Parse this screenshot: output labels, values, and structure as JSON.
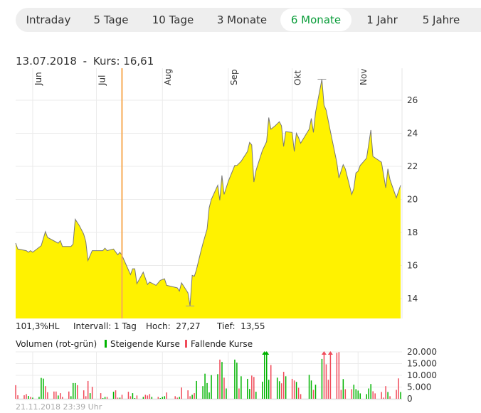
{
  "tabs": [
    {
      "label": "Intraday",
      "active": false
    },
    {
      "label": "5 Tage",
      "active": false
    },
    {
      "label": "10 Tage",
      "active": false
    },
    {
      "label": "3 Monate",
      "active": false
    },
    {
      "label": "6 Monate",
      "active": true
    },
    {
      "label": "1 Jahr",
      "active": false
    },
    {
      "label": "5 Jahre",
      "active": false
    }
  ],
  "header": {
    "date": "13.07.2018",
    "separator": "-",
    "kurs_label": "Kurs:",
    "kurs_value": "16,61"
  },
  "info": {
    "hl": "101,3%HL",
    "intervall": "Intervall: 1 Tag",
    "hoch_label": "Hoch:",
    "hoch_value": "27,27",
    "tief_label": "Tief:",
    "tief_value": "13,55"
  },
  "legend": {
    "title": "Volumen (rot-grün)",
    "up_label": "Steigende Kurse",
    "down_label": "Fallende Kurse"
  },
  "footer": {
    "timestamp": "21.11.2018 23:39 Uhr"
  },
  "colors": {
    "fill": "#fff200",
    "line": "#777777",
    "crosshair": "#f7ab55",
    "up": "#00b400",
    "down": "#f04b5a",
    "active_tab": "#0a9d3a",
    "grid": "#ebebeb"
  },
  "chart_data": [
    {
      "type": "area",
      "xlim": [
        "2018-05-24",
        "2018-11-21"
      ],
      "ylim": [
        13,
        27.5
      ],
      "yticks": [
        14,
        16,
        18,
        20,
        22,
        24,
        26
      ],
      "ytick_labels": [
        "14",
        "16",
        "18",
        "20",
        "22",
        "24",
        "26"
      ],
      "xticks": [
        "2018-06-01",
        "2018-07-01",
        "2018-08-01",
        "2018-09-01",
        "2018-10-01",
        "2018-11-01"
      ],
      "xtick_labels": [
        "Jun",
        "Jul",
        "Aug",
        "Sep",
        "Okt",
        "Nov"
      ],
      "grid": true,
      "crosshair": {
        "date": "2018-07-13",
        "value": 16.61
      },
      "high": {
        "date": "2018-10-15",
        "value": 27.27
      },
      "low": {
        "date": "2018-08-14",
        "value": 13.55
      },
      "points": [
        [
          "2018-05-24",
          17.35
        ],
        [
          "2018-05-25",
          17.0
        ],
        [
          "2018-05-29",
          16.9
        ],
        [
          "2018-05-30",
          16.8
        ],
        [
          "2018-05-31",
          16.9
        ],
        [
          "2018-06-01",
          16.8
        ],
        [
          "2018-06-05",
          17.2
        ],
        [
          "2018-06-07",
          18.05
        ],
        [
          "2018-06-08",
          17.7
        ],
        [
          "2018-06-13",
          17.35
        ],
        [
          "2018-06-14",
          17.5
        ],
        [
          "2018-06-15",
          17.15
        ],
        [
          "2018-06-19",
          17.15
        ],
        [
          "2018-06-20",
          17.3
        ],
        [
          "2018-06-21",
          18.8
        ],
        [
          "2018-06-23",
          18.4
        ],
        [
          "2018-06-25",
          17.9
        ],
        [
          "2018-06-26",
          17.45
        ],
        [
          "2018-06-27",
          16.3
        ],
        [
          "2018-06-29",
          16.9
        ],
        [
          "2018-07-04",
          16.9
        ],
        [
          "2018-07-05",
          17.05
        ],
        [
          "2018-07-06",
          16.9
        ],
        [
          "2018-07-09",
          17.0
        ],
        [
          "2018-07-11",
          16.65
        ],
        [
          "2018-07-12",
          16.8
        ],
        [
          "2018-07-13",
          16.61
        ],
        [
          "2018-07-17",
          15.45
        ],
        [
          "2018-07-18",
          15.8
        ],
        [
          "2018-07-19",
          15.8
        ],
        [
          "2018-07-20",
          14.9
        ],
        [
          "2018-07-23",
          15.6
        ],
        [
          "2018-07-25",
          14.85
        ],
        [
          "2018-07-26",
          15.0
        ],
        [
          "2018-07-29",
          14.8
        ],
        [
          "2018-07-31",
          15.1
        ],
        [
          "2018-08-02",
          15.2
        ],
        [
          "2018-08-03",
          14.8
        ],
        [
          "2018-08-08",
          14.65
        ],
        [
          "2018-08-09",
          14.45
        ],
        [
          "2018-08-10",
          14.95
        ],
        [
          "2018-08-13",
          14.35
        ],
        [
          "2018-08-14",
          13.55
        ],
        [
          "2018-08-15",
          15.4
        ],
        [
          "2018-08-16",
          15.35
        ],
        [
          "2018-08-17",
          15.75
        ],
        [
          "2018-08-19",
          16.8
        ],
        [
          "2018-08-20",
          17.3
        ],
        [
          "2018-08-21",
          17.75
        ],
        [
          "2018-08-22",
          18.2
        ],
        [
          "2018-08-23",
          19.5
        ],
        [
          "2018-08-24",
          20.0
        ],
        [
          "2018-08-27",
          20.85
        ],
        [
          "2018-08-28",
          19.95
        ],
        [
          "2018-08-29",
          21.45
        ],
        [
          "2018-08-30",
          20.3
        ],
        [
          "2018-09-01",
          21.1
        ],
        [
          "2018-09-04",
          22.05
        ],
        [
          "2018-09-05",
          22.05
        ],
        [
          "2018-09-07",
          22.3
        ],
        [
          "2018-09-10",
          22.9
        ],
        [
          "2018-09-11",
          23.45
        ],
        [
          "2018-09-12",
          23.3
        ],
        [
          "2018-09-13",
          21.05
        ],
        [
          "2018-09-14",
          21.75
        ],
        [
          "2018-09-17",
          22.95
        ],
        [
          "2018-09-19",
          23.5
        ],
        [
          "2018-09-20",
          24.95
        ],
        [
          "2018-09-21",
          24.25
        ],
        [
          "2018-09-23",
          24.45
        ],
        [
          "2018-09-25",
          24.7
        ],
        [
          "2018-09-26",
          24.45
        ],
        [
          "2018-09-27",
          23.2
        ],
        [
          "2018-09-28",
          24.1
        ],
        [
          "2018-10-01",
          24.05
        ],
        [
          "2018-10-02",
          22.9
        ],
        [
          "2018-10-03",
          24.0
        ],
        [
          "2018-10-04",
          23.75
        ],
        [
          "2018-10-05",
          23.4
        ],
        [
          "2018-10-09",
          24.25
        ],
        [
          "2018-10-10",
          24.9
        ],
        [
          "2018-10-11",
          24.05
        ],
        [
          "2018-10-12",
          25.25
        ],
        [
          "2018-10-15",
          27.27
        ],
        [
          "2018-10-16",
          25.7
        ],
        [
          "2018-10-17",
          25.4
        ],
        [
          "2018-10-19",
          24.1
        ],
        [
          "2018-10-22",
          22.25
        ],
        [
          "2018-10-23",
          21.3
        ],
        [
          "2018-10-25",
          22.1
        ],
        [
          "2018-10-26",
          21.85
        ],
        [
          "2018-10-29",
          20.3
        ],
        [
          "2018-10-30",
          20.65
        ],
        [
          "2018-10-31",
          21.6
        ],
        [
          "2018-11-01",
          21.7
        ],
        [
          "2018-11-02",
          22.05
        ],
        [
          "2018-11-05",
          22.5
        ],
        [
          "2018-11-07",
          24.2
        ],
        [
          "2018-11-08",
          22.6
        ],
        [
          "2018-11-12",
          22.25
        ],
        [
          "2018-11-14",
          20.7
        ],
        [
          "2018-11-15",
          21.85
        ],
        [
          "2018-11-16",
          21.2
        ],
        [
          "2018-11-19",
          20.1
        ],
        [
          "2018-11-21",
          20.85
        ]
      ]
    },
    {
      "type": "bar",
      "xlim": [
        "2018-05-24",
        "2018-11-21"
      ],
      "ylim": [
        0,
        20000
      ],
      "yticks": [
        0,
        5000,
        10000,
        15000,
        20000
      ],
      "ytick_labels": [
        "0",
        "5.000",
        "10.000",
        "15.000",
        "20.000"
      ],
      "grid": true,
      "bars": [
        [
          "2018-05-24",
          5800,
          "down"
        ],
        [
          "2018-05-25",
          1500,
          "down"
        ],
        [
          "2018-05-28",
          1500,
          "down"
        ],
        [
          "2018-05-29",
          2000,
          "down"
        ],
        [
          "2018-05-30",
          1200,
          "up"
        ],
        [
          "2018-05-31",
          800,
          "down"
        ],
        [
          "2018-06-01",
          500,
          "up"
        ],
        [
          "2018-06-04",
          800,
          "up"
        ],
        [
          "2018-06-05",
          8900,
          "up"
        ],
        [
          "2018-06-06",
          8600,
          "up"
        ],
        [
          "2018-06-07",
          5400,
          "down"
        ],
        [
          "2018-06-08",
          2800,
          "down"
        ],
        [
          "2018-06-11",
          3100,
          "down"
        ],
        [
          "2018-06-12",
          3100,
          "down"
        ],
        [
          "2018-06-13",
          1400,
          "up"
        ],
        [
          "2018-06-14",
          2400,
          "down"
        ],
        [
          "2018-06-15",
          800,
          "down"
        ],
        [
          "2018-06-18",
          3100,
          "down"
        ],
        [
          "2018-06-19",
          1100,
          "up"
        ],
        [
          "2018-06-20",
          6700,
          "up"
        ],
        [
          "2018-06-21",
          6700,
          "up"
        ],
        [
          "2018-06-22",
          5800,
          "down"
        ],
        [
          "2018-06-25",
          3600,
          "down"
        ],
        [
          "2018-06-26",
          1100,
          "down"
        ],
        [
          "2018-06-27",
          7600,
          "down"
        ],
        [
          "2018-06-28",
          2400,
          "up"
        ],
        [
          "2018-06-29",
          5100,
          "down"
        ],
        [
          "2018-07-03",
          2400,
          "down"
        ],
        [
          "2018-07-04",
          300,
          "up"
        ],
        [
          "2018-07-05",
          800,
          "up"
        ],
        [
          "2018-07-06",
          800,
          "down"
        ],
        [
          "2018-07-09",
          3000,
          "up"
        ],
        [
          "2018-07-10",
          3600,
          "down"
        ],
        [
          "2018-07-11",
          500,
          "down"
        ],
        [
          "2018-07-12",
          500,
          "up"
        ],
        [
          "2018-07-13",
          1700,
          "down"
        ],
        [
          "2018-07-16",
          3000,
          "down"
        ],
        [
          "2018-07-17",
          1100,
          "down"
        ],
        [
          "2018-07-18",
          2400,
          "up"
        ],
        [
          "2018-07-19",
          300,
          "up"
        ],
        [
          "2018-07-20",
          1400,
          "down"
        ],
        [
          "2018-07-23",
          800,
          "up"
        ],
        [
          "2018-07-24",
          1700,
          "down"
        ],
        [
          "2018-07-25",
          1400,
          "down"
        ],
        [
          "2018-07-26",
          2000,
          "down"
        ],
        [
          "2018-07-27",
          800,
          "up"
        ],
        [
          "2018-07-30",
          800,
          "down"
        ],
        [
          "2018-07-31",
          300,
          "up"
        ],
        [
          "2018-08-01",
          800,
          "up"
        ],
        [
          "2018-08-02",
          1100,
          "up"
        ],
        [
          "2018-08-03",
          2700,
          "down"
        ],
        [
          "2018-08-07",
          1100,
          "down"
        ],
        [
          "2018-08-08",
          500,
          "down"
        ],
        [
          "2018-08-09",
          800,
          "up"
        ],
        [
          "2018-08-10",
          4800,
          "down"
        ],
        [
          "2018-08-13",
          3600,
          "down"
        ],
        [
          "2018-08-14",
          1100,
          "down"
        ],
        [
          "2018-08-15",
          1700,
          "up"
        ],
        [
          "2018-08-16",
          2400,
          "down"
        ],
        [
          "2018-08-17",
          7600,
          "up"
        ],
        [
          "2018-08-20",
          5400,
          "up"
        ],
        [
          "2018-08-21",
          10700,
          "up"
        ],
        [
          "2018-08-22",
          6700,
          "up"
        ],
        [
          "2018-08-23",
          2700,
          "up"
        ],
        [
          "2018-08-24",
          10100,
          "up"
        ],
        [
          "2018-08-27",
          10500,
          "up"
        ],
        [
          "2018-08-28",
          16700,
          "down"
        ],
        [
          "2018-08-29",
          15700,
          "up"
        ],
        [
          "2018-08-30",
          9000,
          "down"
        ],
        [
          "2018-08-31",
          4400,
          "up"
        ],
        [
          "2018-09-04",
          16700,
          "up"
        ],
        [
          "2018-09-05",
          15400,
          "up"
        ],
        [
          "2018-09-06",
          4400,
          "down"
        ],
        [
          "2018-09-07",
          9600,
          "up"
        ],
        [
          "2018-09-10",
          8500,
          "up"
        ],
        [
          "2018-09-11",
          4200,
          "up"
        ],
        [
          "2018-09-12",
          9900,
          "down"
        ],
        [
          "2018-09-13",
          9300,
          "down"
        ],
        [
          "2018-09-14",
          3000,
          "up"
        ],
        [
          "2018-09-17",
          7300,
          "up"
        ],
        [
          "2018-09-18",
          24000,
          "up"
        ],
        [
          "2018-09-19",
          24000,
          "up"
        ],
        [
          "2018-09-20",
          8100,
          "up"
        ],
        [
          "2018-09-21",
          14400,
          "down"
        ],
        [
          "2018-09-24",
          9000,
          "up"
        ],
        [
          "2018-09-25",
          7500,
          "up"
        ],
        [
          "2018-09-26",
          6600,
          "down"
        ],
        [
          "2018-09-27",
          11500,
          "down"
        ],
        [
          "2018-09-28",
          9600,
          "up"
        ],
        [
          "2018-10-01",
          8500,
          "down"
        ],
        [
          "2018-10-02",
          7800,
          "down"
        ],
        [
          "2018-10-03",
          7200,
          "up"
        ],
        [
          "2018-10-04",
          4700,
          "down"
        ],
        [
          "2018-10-05",
          2000,
          "down"
        ],
        [
          "2018-10-09",
          10200,
          "up"
        ],
        [
          "2018-10-10",
          7800,
          "up"
        ],
        [
          "2018-10-11",
          3800,
          "down"
        ],
        [
          "2018-10-12",
          6000,
          "up"
        ],
        [
          "2018-10-15",
          17000,
          "up"
        ],
        [
          "2018-10-16",
          24000,
          "down"
        ],
        [
          "2018-10-17",
          14700,
          "down"
        ],
        [
          "2018-10-18",
          8100,
          "down"
        ],
        [
          "2018-10-19",
          24000,
          "down"
        ],
        [
          "2018-10-22",
          19600,
          "down"
        ],
        [
          "2018-10-23",
          19900,
          "down"
        ],
        [
          "2018-10-24",
          3800,
          "down"
        ],
        [
          "2018-10-25",
          8400,
          "up"
        ],
        [
          "2018-10-26",
          4100,
          "down"
        ],
        [
          "2018-10-29",
          4100,
          "down"
        ],
        [
          "2018-10-30",
          6000,
          "up"
        ],
        [
          "2018-10-31",
          4100,
          "up"
        ],
        [
          "2018-11-01",
          3500,
          "up"
        ],
        [
          "2018-11-02",
          2300,
          "up"
        ],
        [
          "2018-11-05",
          2000,
          "up"
        ],
        [
          "2018-11-06",
          4400,
          "up"
        ],
        [
          "2018-11-07",
          6300,
          "up"
        ],
        [
          "2018-11-08",
          3200,
          "down"
        ],
        [
          "2018-11-09",
          2300,
          "down"
        ],
        [
          "2018-11-12",
          2900,
          "down"
        ],
        [
          "2018-11-13",
          500,
          "down"
        ],
        [
          "2018-11-14",
          5400,
          "down"
        ],
        [
          "2018-11-15",
          2900,
          "up"
        ],
        [
          "2018-11-16",
          1100,
          "down"
        ],
        [
          "2018-11-19",
          3800,
          "down"
        ],
        [
          "2018-11-20",
          8700,
          "down"
        ],
        [
          "2018-11-21",
          2900,
          "up"
        ]
      ]
    }
  ]
}
